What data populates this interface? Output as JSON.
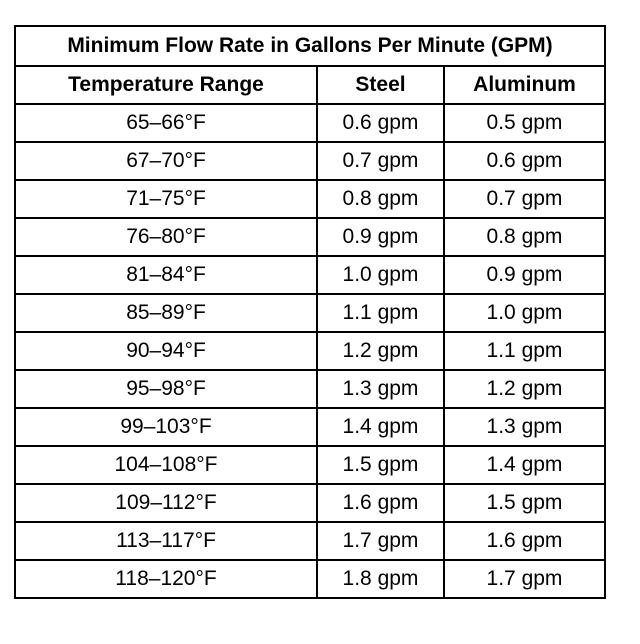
{
  "table": {
    "title": "Minimum Flow Rate in Gallons Per Minute (GPM)",
    "headers": [
      "Temperature Range",
      "Steel",
      "Aluminum"
    ],
    "rows": [
      [
        "65–66°F",
        "0.6 gpm",
        "0.5 gpm"
      ],
      [
        "67–70°F",
        "0.7 gpm",
        "0.6 gpm"
      ],
      [
        "71–75°F",
        "0.8 gpm",
        "0.7 gpm"
      ],
      [
        "76–80°F",
        "0.9 gpm",
        "0.8 gpm"
      ],
      [
        "81–84°F",
        "1.0 gpm",
        "0.9 gpm"
      ],
      [
        "85–89°F",
        "1.1 gpm",
        "1.0 gpm"
      ],
      [
        "90–94°F",
        "1.2 gpm",
        "1.1 gpm"
      ],
      [
        "95–98°F",
        "1.3 gpm",
        "1.2 gpm"
      ],
      [
        "99–103°F",
        "1.4 gpm",
        "1.3 gpm"
      ],
      [
        "104–108°F",
        "1.5 gpm",
        "1.4 gpm"
      ],
      [
        "109–112°F",
        "1.6 gpm",
        "1.5 gpm"
      ],
      [
        "113–117°F",
        "1.7 gpm",
        "1.6 gpm"
      ],
      [
        "118–120°F",
        "1.8 gpm",
        "1.7 gpm"
      ]
    ]
  }
}
